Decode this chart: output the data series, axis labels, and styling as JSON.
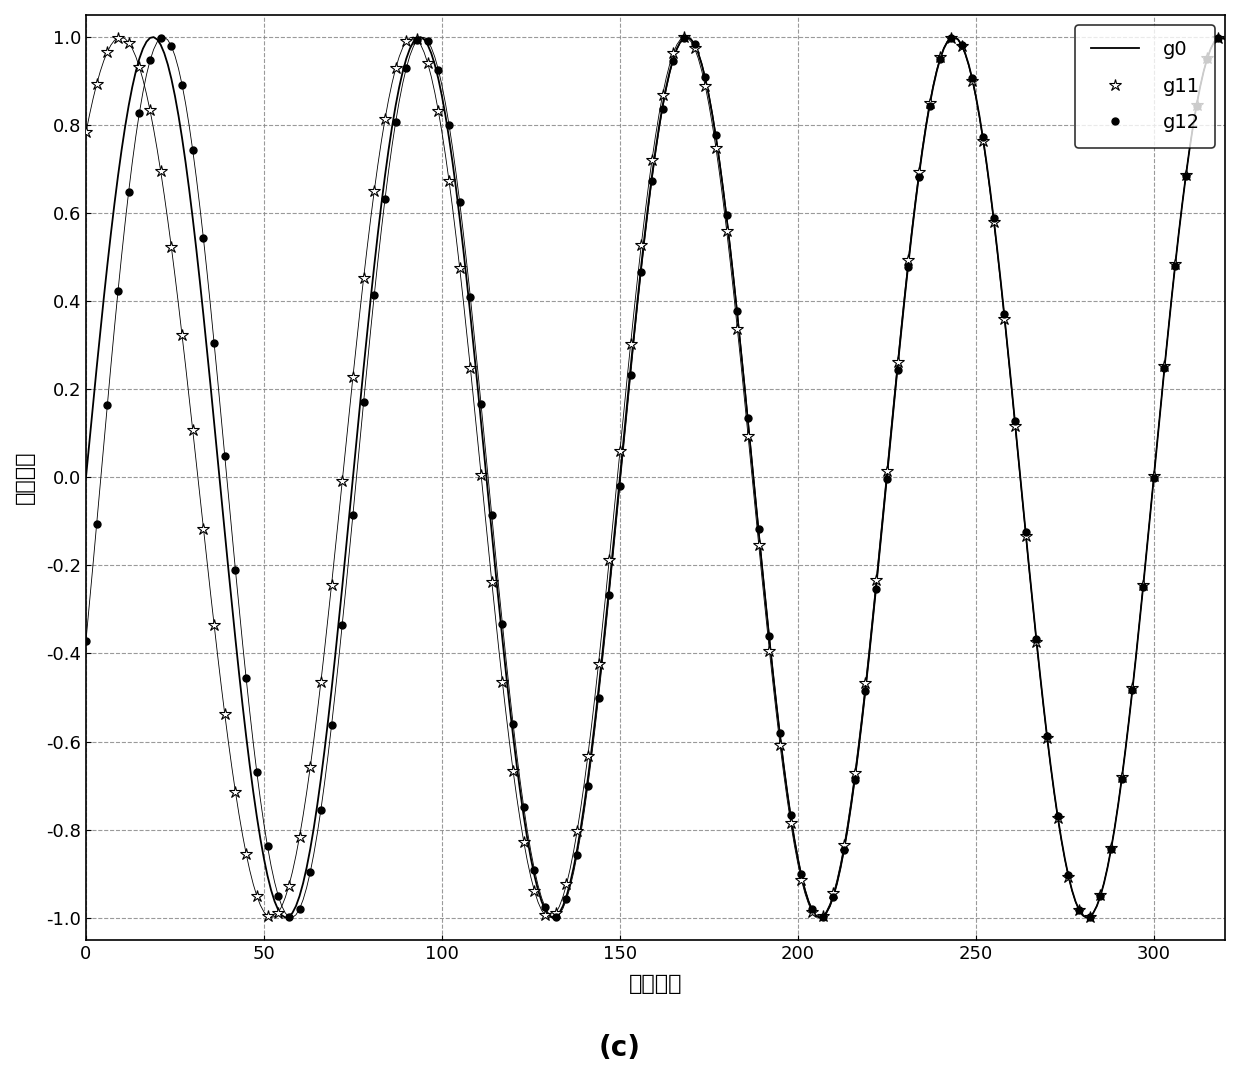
{
  "title": "(c)",
  "xlabel": "采样点数",
  "ylabel": "信号幅度",
  "xlim": [
    0,
    320
  ],
  "ylim": [
    -1.05,
    1.05
  ],
  "yticks": [
    -1,
    -0.8,
    -0.6,
    -0.4,
    -0.2,
    0,
    0.2,
    0.4,
    0.6,
    0.8,
    1
  ],
  "xticks": [
    0,
    50,
    100,
    150,
    200,
    250,
    300
  ],
  "n_points": 321,
  "period": 75.0,
  "g11_init_phase_rad": 0.9,
  "g11_tau": 55.0,
  "g12_init_phase_rad": -0.38,
  "g12_tau": 50.0,
  "g0_color": "#000000",
  "g11_color": "#000000",
  "g12_color": "#000000",
  "legend_labels": [
    "g0",
    "g11",
    "g12"
  ],
  "figsize": [
    12.4,
    10.73
  ],
  "dpi": 100,
  "marker_step": 3
}
